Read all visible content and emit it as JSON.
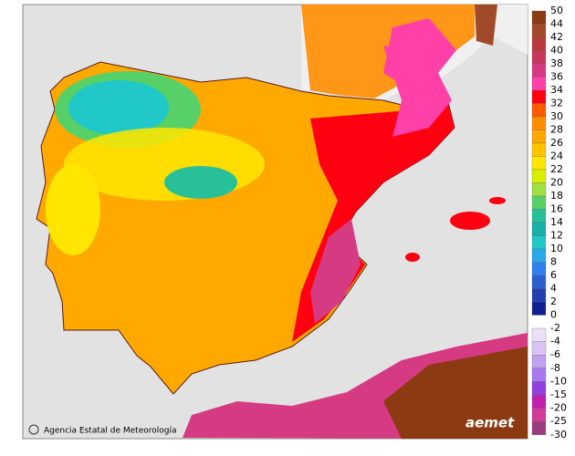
{
  "legend": {
    "upper": {
      "labels": [
        50,
        44,
        42,
        40,
        38,
        36,
        34,
        32,
        30,
        28,
        26,
        24,
        22,
        20,
        18,
        16,
        14,
        12,
        10,
        8,
        6,
        4,
        2,
        0
      ],
      "colors": [
        "#8b3a12",
        "#a04a2a",
        "#b83c3c",
        "#c8385a",
        "#d63a82",
        "#ff40a8",
        "#ff0010",
        "#ff5a00",
        "#ff8c00",
        "#ffa800",
        "#ffc400",
        "#ffe600",
        "#d8f000",
        "#a0e040",
        "#58d068",
        "#28c098",
        "#18b0a8",
        "#20c8c8",
        "#2aa8e8",
        "#3080f0",
        "#2c60d0",
        "#2040b0",
        "#102090"
      ]
    },
    "lower": {
      "labels": [
        -2,
        -4,
        -6,
        -8,
        -10,
        -15,
        -20,
        -25,
        -30
      ],
      "colors": [
        "#ece0f8",
        "#d8c4f2",
        "#c0a0f0",
        "#a878f0",
        "#9040e0",
        "#c020b0",
        "#d03c98",
        "#9c3c80"
      ]
    }
  },
  "footer": {
    "credit": "Agencia Estatal de Meteorología",
    "logo": "aemet"
  }
}
